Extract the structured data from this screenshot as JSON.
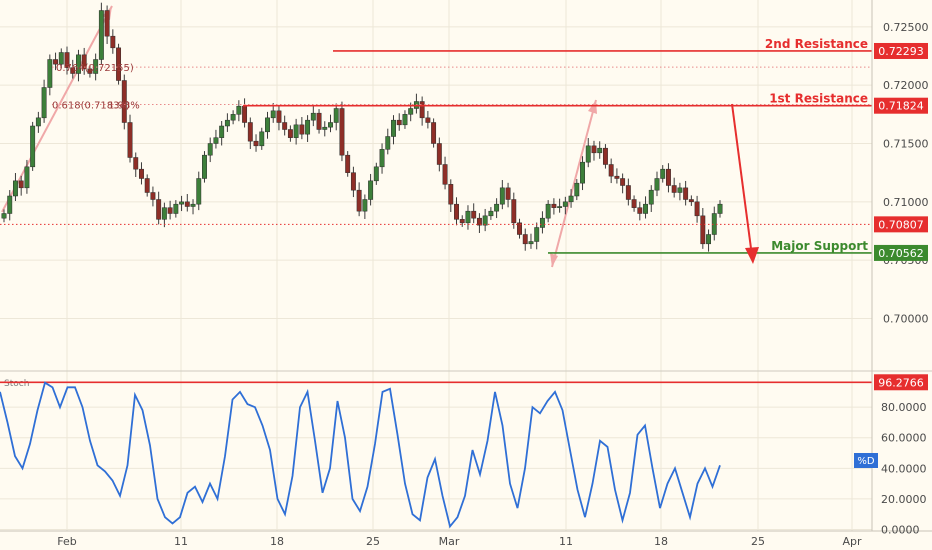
{
  "chart_data": [
    {
      "type": "candlestick",
      "title": "",
      "x_ticks": [
        "Feb",
        "11",
        "18",
        "25",
        "Mar",
        "11",
        "18",
        "25",
        "Apr"
      ],
      "y_ticks": [
        0.7,
        0.705,
        0.71,
        0.715,
        0.72,
        0.725
      ],
      "y_tick_labels": [
        "0.70000",
        "0.70500",
        "0.71000",
        "0.71500",
        "0.72000",
        "0.72500"
      ],
      "ylim": [
        0.6955,
        0.7273
      ],
      "levels": [
        {
          "name": "2nd Resistance",
          "value": 0.72293,
          "value_label": "0.72293",
          "color": "#e62e2e"
        },
        {
          "name": "1st Resistance",
          "value": 0.71824,
          "value_label": "0.71824",
          "color": "#e62e2e"
        },
        {
          "name": "Major Support",
          "value": 0.70562,
          "value_label": "0.70562",
          "color": "#3c8a2e"
        }
      ],
      "current_price": {
        "value": 0.70807,
        "label": "0.70807",
        "color": "#e62e2e"
      },
      "fib_levels": [
        {
          "label": "0.764(0.72155)",
          "value": 0.72155
        },
        {
          "label": "0.618(0.71834)",
          "extra": "1.98%",
          "value": 0.71834
        }
      ],
      "series": [
        {
          "name": "price",
          "values": [
            0.709,
            0.7105,
            0.7118,
            0.7112,
            0.713,
            0.7165,
            0.7172,
            0.7198,
            0.7222,
            0.7218,
            0.7228,
            0.7215,
            0.721,
            0.7226,
            0.7214,
            0.721,
            0.7222,
            0.7264,
            0.7242,
            0.7232,
            0.7204,
            0.7168,
            0.7138,
            0.7128,
            0.712,
            0.7108,
            0.7102,
            0.7085,
            0.7095,
            0.709,
            0.7098,
            0.71,
            0.7096,
            0.7098,
            0.712,
            0.714,
            0.715,
            0.7155,
            0.7165,
            0.717,
            0.7175,
            0.7182,
            0.7168,
            0.7152,
            0.7148,
            0.716,
            0.7172,
            0.7178,
            0.7168,
            0.7162,
            0.7155,
            0.7166,
            0.7158,
            0.717,
            0.7176,
            0.7162,
            0.7164,
            0.7168,
            0.718,
            0.714,
            0.7125,
            0.711,
            0.7092,
            0.7102,
            0.7118,
            0.713,
            0.7145,
            0.7156,
            0.717,
            0.7166,
            0.7175,
            0.718,
            0.7186,
            0.7172,
            0.7168,
            0.715,
            0.7132,
            0.7115,
            0.7098,
            0.7085,
            0.7082,
            0.7092,
            0.7086,
            0.708,
            0.7088,
            0.7092,
            0.7098,
            0.7112,
            0.7102,
            0.7082,
            0.7072,
            0.7064,
            0.7066,
            0.7078,
            0.7086,
            0.7098,
            0.7095,
            0.7096,
            0.71,
            0.7105,
            0.7116,
            0.7134,
            0.7148,
            0.7142,
            0.7146,
            0.7132,
            0.7122,
            0.712,
            0.7114,
            0.7102,
            0.7095,
            0.709,
            0.7098,
            0.711,
            0.712,
            0.7128,
            0.7114,
            0.7108,
            0.7112,
            0.7102,
            0.71,
            0.7088,
            0.7064,
            0.7072,
            0.709,
            0.7098
          ]
        }
      ]
    },
    {
      "type": "line",
      "indicator": "Stoch",
      "y_ticks": [
        0,
        20,
        40,
        60,
        80
      ],
      "y_tick_labels": [
        "0.0000",
        "20.0000",
        "40.0000",
        "60.0000",
        "80.0000"
      ],
      "ylim": [
        -1,
        103
      ],
      "levels": [
        {
          "value": 96.2766,
          "value_label": "96.2766",
          "color": "#e62e2e"
        }
      ],
      "series": [
        {
          "name": "%D",
          "color": "#2f6fd6",
          "values": [
            90,
            70,
            48,
            40,
            56,
            78,
            96,
            93,
            80,
            93,
            93,
            80,
            58,
            42,
            38,
            32,
            22,
            42,
            88,
            78,
            55,
            20,
            8,
            4,
            8,
            24,
            28,
            18,
            30,
            20,
            48,
            85,
            90,
            82,
            80,
            68,
            52,
            20,
            10,
            35,
            80,
            90,
            58,
            24,
            40,
            84,
            60,
            20,
            12,
            28,
            56,
            90,
            92,
            62,
            30,
            10,
            6,
            34,
            46,
            22,
            2,
            8,
            22,
            52,
            36,
            58,
            90,
            68,
            30,
            14,
            40,
            80,
            76,
            84,
            90,
            78,
            52,
            26,
            8,
            30,
            58,
            54,
            26,
            6,
            24,
            62,
            68,
            40,
            14,
            30,
            40,
            24,
            8,
            30,
            40,
            28,
            42
          ]
        }
      ]
    }
  ]
}
